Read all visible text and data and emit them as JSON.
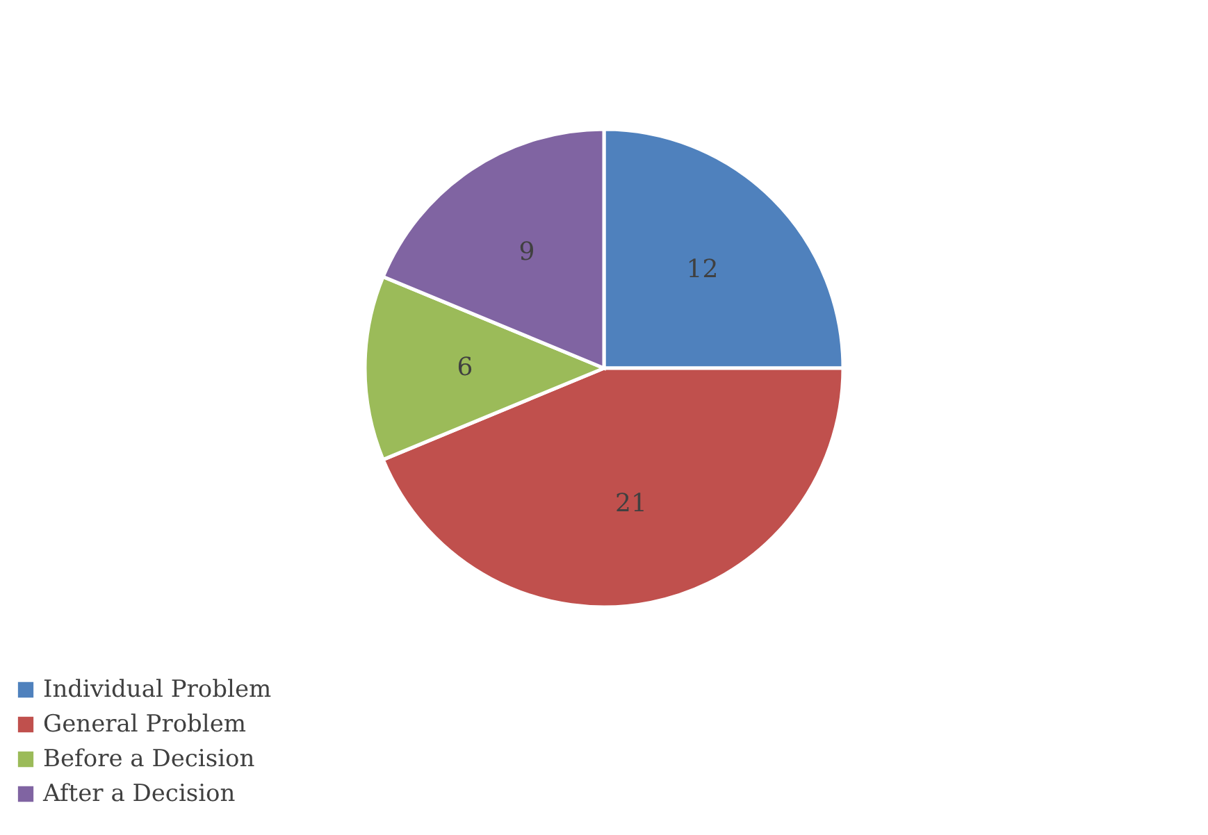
{
  "chart_data": {
    "type": "pie",
    "categories": [
      "Individual Problem",
      "General Problem",
      "Before a Decision",
      "After a Decision"
    ],
    "values": [
      12,
      21,
      6,
      9
    ],
    "colors": [
      "#4f81bd",
      "#c0504d",
      "#9bbb59",
      "#8064a2"
    ],
    "data_labels": true,
    "legend": "bottom"
  }
}
